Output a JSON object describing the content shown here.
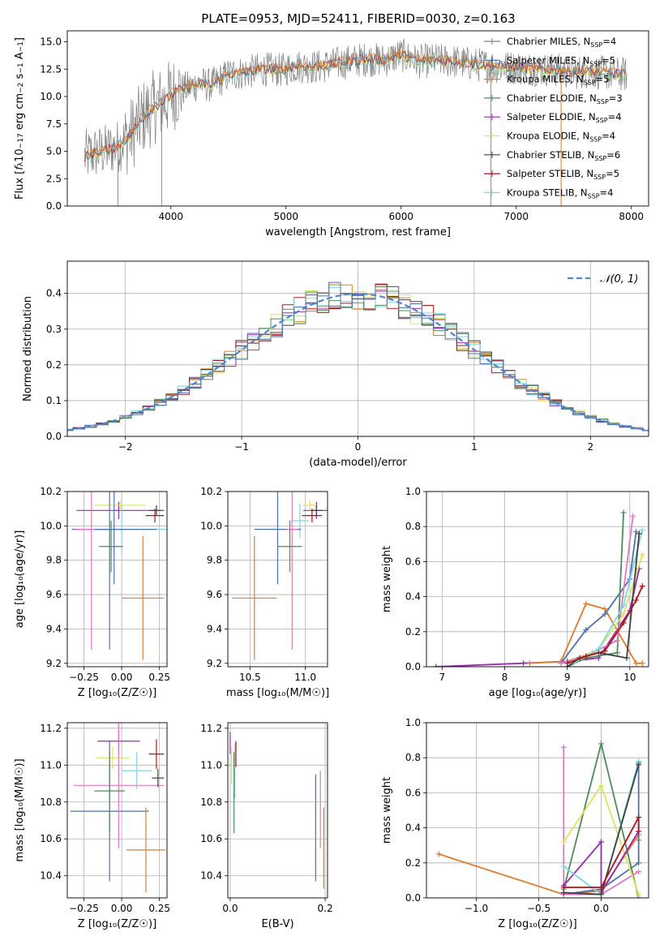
{
  "figure": {
    "title": "PLATE=0953, MJD=52411, FIBERID=0030, z=0.163"
  },
  "colors": {
    "chabrier_miles": "#7f7f7f",
    "salpeter_miles": "#4c72b0",
    "kroupa_miles": "#e07b2a",
    "chabrier_elodie": "#4e8a5c",
    "salpeter_elodie": "#9b27b0",
    "kroupa_elodie": "#d9e45a",
    "chabrier_stelib": "#404040",
    "salpeter_stelib": "#b2121a",
    "kroupa_stelib": "#7fd8e0",
    "pink": "#e377c2",
    "gauss": "#4f86d0"
  },
  "chart_data": [
    {
      "id": "spectrum",
      "type": "line",
      "xlabel": "wavelength [Angstrom, rest frame]",
      "ylabel": "Flux [f_λ10^-17 erg cm^-2 s^-1 A^-1]",
      "xlim": [
        3100,
        8150
      ],
      "ylim": [
        0,
        16
      ],
      "xticks": [
        4000,
        5000,
        6000,
        7000,
        8000
      ],
      "yticks": [
        0.0,
        2.5,
        5.0,
        7.5,
        10.0,
        12.5,
        15.0
      ],
      "ytick_labels": [
        "0.0",
        "2.5",
        "5.0",
        "7.5",
        "10.0",
        "12.5",
        "15.0"
      ],
      "grid": false,
      "legend_position": "right",
      "legend": [
        {
          "sub": "Chabrier MILES, N",
          "idx": "SSP",
          "post": "=4",
          "color_key": "chabrier_miles"
        },
        {
          "sub": "Salpeter MILES, N",
          "idx": "SSP",
          "post": "=5",
          "color_key": "salpeter_miles"
        },
        {
          "sub": "Kroupa MILES, N",
          "idx": "SSP",
          "post": "=5",
          "color_key": "kroupa_miles"
        },
        {
          "sub": "Chabrier ELODIE, N",
          "idx": "SSP",
          "post": "=3",
          "color_key": "chabrier_elodie"
        },
        {
          "sub": "Salpeter ELODIE, N",
          "idx": "SSP",
          "post": "=4",
          "color_key": "salpeter_elodie"
        },
        {
          "sub": "Kroupa ELODIE, N",
          "idx": "SSP",
          "post": "=4",
          "color_key": "kroupa_elodie"
        },
        {
          "sub": "Chabrier STELIB, N",
          "idx": "SSP",
          "post": "=6",
          "color_key": "chabrier_stelib"
        },
        {
          "sub": "Salpeter STELIB, N",
          "idx": "SSP",
          "post": "=5",
          "color_key": "salpeter_stelib"
        },
        {
          "sub": "Kroupa STELIB, N",
          "idx": "SSP",
          "post": "=4",
          "color_key": "kroupa_stelib"
        }
      ],
      "x": [
        3250,
        3350,
        3450,
        3550,
        3650,
        3750,
        3850,
        3950,
        4050,
        4150,
        4250,
        4350,
        4500,
        4650,
        4800,
        4950,
        5100,
        5250,
        5400,
        5550,
        5700,
        5850,
        6000,
        6150,
        6300,
        6450,
        6600,
        6750,
        6900,
        7050,
        7200,
        7350,
        7500,
        7650,
        7800,
        7950
      ],
      "y": [
        4.5,
        4.9,
        5.1,
        5.5,
        6.5,
        8.0,
        9.0,
        9.6,
        10.5,
        10.8,
        11.2,
        11.0,
        12.0,
        12.2,
        12.5,
        12.4,
        12.8,
        12.7,
        12.9,
        13.2,
        13.4,
        13.3,
        13.8,
        13.2,
        13.3,
        13.2,
        13.0,
        12.8,
        12.7,
        12.6,
        12.5,
        12.4,
        12.2,
        12.3,
        12.1,
        12.0
      ]
    },
    {
      "id": "residuals",
      "type": "bar",
      "xlabel": "(data-model)/error",
      "ylabel": "Normed distribution",
      "xlim": [
        -2.5,
        2.5
      ],
      "ylim": [
        0,
        0.49
      ],
      "xticks": [
        -2,
        -1,
        0,
        1,
        2
      ],
      "xtick_labels": [
        "−2",
        "−1",
        "0",
        "1",
        "2"
      ],
      "yticks": [
        0.0,
        0.1,
        0.2,
        0.3,
        0.4
      ],
      "ytick_labels": [
        "0.0",
        "0.1",
        "0.2",
        "0.3",
        "0.4"
      ],
      "grid": true,
      "legend_position": "top-right",
      "legend_label": "𝒩(0, 1)",
      "bin_width": 0.1
    },
    {
      "id": "age-vs-z",
      "type": "scatter",
      "xlabel": "Z [log₁₀(Z/Z☉)]",
      "ylabel": "age  [log₁₀(age/yr)]",
      "xlim": [
        -0.36,
        0.3
      ],
      "ylim": [
        9.18,
        10.2
      ],
      "xticks": [
        -0.25,
        0.0,
        0.25
      ],
      "xtick_labels": [
        "−0.25",
        "0.00",
        "0.25"
      ],
      "yticks": [
        9.2,
        9.4,
        9.6,
        9.8,
        10.0,
        10.2
      ],
      "ytick_labels": [
        "9.2",
        "9.4",
        "9.6",
        "9.8",
        "10.0",
        "10.2"
      ],
      "grid": true,
      "points": [
        {
          "x": -0.02,
          "xerr": 0.28,
          "y": 10.09,
          "yerr": 0.05,
          "color_key": "salpeter_elodie"
        },
        {
          "x": -0.01,
          "xerr": 0.17,
          "y": 10.12,
          "yerr": 0.03,
          "color_key": "kroupa_elodie"
        },
        {
          "x": 0.0,
          "xerr": 0.3,
          "y": 9.98,
          "yerr": 0.14,
          "color_key": "kroupa_stelib"
        },
        {
          "x": -0.05,
          "xerr": 0.28,
          "y": 9.98,
          "yerr": 0.32,
          "color_key": "salpeter_miles"
        },
        {
          "x": -0.2,
          "xerr": 0.1,
          "y": 9.98,
          "yerr": 0.7,
          "color_key": "pink"
        },
        {
          "x": -0.08,
          "xerr": 0.1,
          "y": 9.98,
          "yerr": 0.7,
          "color_key": "salpeter_miles"
        },
        {
          "x": -0.07,
          "xerr": 0.08,
          "y": 9.88,
          "yerr": 0.15,
          "color_key": "chabrier_elodie"
        },
        {
          "x": 0.22,
          "xerr": 0.06,
          "y": 10.06,
          "yerr": 0.04,
          "color_key": "salpeter_stelib"
        },
        {
          "x": 0.23,
          "xerr": 0.05,
          "y": 10.09,
          "yerr": 0.03,
          "color_key": "chabrier_stelib"
        },
        {
          "x": 0.14,
          "xerr": 0.14,
          "y": 9.58,
          "yerr": 0.36,
          "color_key": "kroupa_miles"
        }
      ]
    },
    {
      "id": "age-vs-mass",
      "type": "scatter",
      "xlabel": "mass [log₁₀(M/M☉)]",
      "ylabel": "",
      "xlim": [
        10.3,
        11.2
      ],
      "ylim": [
        9.18,
        10.2
      ],
      "xticks": [
        10.5,
        11.0
      ],
      "xtick_labels": [
        "10.5",
        "11.0"
      ],
      "yticks": [
        9.2,
        9.4,
        9.6,
        9.8,
        10.0,
        10.2
      ],
      "ytick_labels": [
        "9.2",
        "9.4",
        "9.6",
        "9.8",
        "10.0",
        "10.2"
      ],
      "grid": true,
      "points": [
        {
          "x": 11.1,
          "xerr": 0.12,
          "y": 10.09,
          "yerr": 0.05,
          "color_key": "salpeter_elodie"
        },
        {
          "x": 11.04,
          "xerr": 0.06,
          "y": 10.12,
          "yerr": 0.03,
          "color_key": "kroupa_elodie"
        },
        {
          "x": 10.95,
          "xerr": 0.08,
          "y": 10.03,
          "yerr": 0.1,
          "color_key": "kroupa_stelib"
        },
        {
          "x": 10.75,
          "xerr": 0.21,
          "y": 9.98,
          "yerr": 0.32,
          "color_key": "salpeter_miles"
        },
        {
          "x": 10.88,
          "xerr": 0.05,
          "y": 9.98,
          "yerr": 0.7,
          "color_key": "pink"
        },
        {
          "x": 10.86,
          "xerr": 0.11,
          "y": 9.88,
          "yerr": 0.15,
          "color_key": "chabrier_elodie"
        },
        {
          "x": 11.06,
          "xerr": 0.09,
          "y": 10.06,
          "yerr": 0.04,
          "color_key": "salpeter_stelib"
        },
        {
          "x": 11.1,
          "xerr": 0.05,
          "y": 10.09,
          "yerr": 0.03,
          "color_key": "chabrier_stelib"
        },
        {
          "x": 10.54,
          "xerr": 0.2,
          "y": 9.58,
          "yerr": 0.36,
          "color_key": "kroupa_miles"
        }
      ]
    },
    {
      "id": "weight-vs-age",
      "type": "line",
      "xlabel": "age  [log₁₀(age/yr)]",
      "ylabel": "mass weight",
      "xlim": [
        6.75,
        10.3
      ],
      "ylim": [
        0,
        1
      ],
      "xticks": [
        7,
        8,
        9,
        10
      ],
      "xtick_labels": [
        "7",
        "8",
        "9",
        "10"
      ],
      "yticks": [
        0.0,
        0.2,
        0.4,
        0.6,
        0.8,
        1.0
      ],
      "ytick_labels": [
        "0.0",
        "0.2",
        "0.4",
        "0.6",
        "0.8",
        "1.0"
      ],
      "grid": true,
      "series": [
        {
          "color_key": "salpeter_elodie",
          "x": [
            6.9,
            8.3,
            9.0,
            9.5,
            10.0,
            10.15
          ],
          "y": [
            0.0,
            0.02,
            0.03,
            0.05,
            0.32,
            0.56
          ]
        },
        {
          "color_key": "kroupa_miles",
          "x": [
            8.4,
            8.9,
            9.3,
            9.6,
            10.1,
            10.2
          ],
          "y": [
            0.02,
            0.03,
            0.36,
            0.33,
            0.02,
            0.02
          ]
        },
        {
          "color_key": "salpeter_miles",
          "x": [
            8.9,
            9.3,
            9.6,
            10.0,
            10.1
          ],
          "y": [
            0.02,
            0.21,
            0.3,
            0.5,
            0.77
          ]
        },
        {
          "color_key": "chabrier_elodie",
          "x": [
            9.0,
            9.3,
            9.8,
            9.9
          ],
          "y": [
            0.0,
            0.05,
            0.08,
            0.88
          ]
        },
        {
          "color_key": "pink",
          "x": [
            8.9,
            9.4,
            9.8,
            10.05
          ],
          "y": [
            0.02,
            0.08,
            0.15,
            0.86
          ]
        },
        {
          "color_key": "kroupa_elodie",
          "x": [
            9.0,
            9.5,
            9.9,
            10.2
          ],
          "y": [
            0.02,
            0.1,
            0.3,
            0.64
          ]
        },
        {
          "color_key": "kroupa_stelib",
          "x": [
            9.1,
            9.5,
            9.9,
            10.2
          ],
          "y": [
            0.02,
            0.1,
            0.35,
            0.78
          ]
        },
        {
          "color_key": "chabrier_stelib",
          "x": [
            9.0,
            9.2,
            9.5,
            9.95,
            10.15
          ],
          "y": [
            0.0,
            0.05,
            0.08,
            0.05,
            0.76
          ]
        },
        {
          "color_key": "salpeter_stelib",
          "x": [
            9.0,
            9.3,
            9.6,
            9.9,
            10.1,
            10.2
          ],
          "y": [
            0.02,
            0.06,
            0.09,
            0.25,
            0.38,
            0.46
          ]
        }
      ]
    },
    {
      "id": "mass-vs-z",
      "type": "scatter",
      "xlabel": "Z [log₁₀(Z/Z☉)]",
      "ylabel": "mass [log₁₀(M/M☉)]",
      "xlim": [
        -0.36,
        0.3
      ],
      "ylim": [
        10.28,
        11.23
      ],
      "xticks": [
        -0.25,
        0.0,
        0.25
      ],
      "xtick_labels": [
        "−0.25",
        "0.00",
        "0.25"
      ],
      "yticks": [
        10.4,
        10.6,
        10.8,
        11.0,
        11.2
      ],
      "ytick_labels": [
        "10.4",
        "10.6",
        "10.8",
        "11.0",
        "11.2"
      ],
      "grid": true,
      "points": [
        {
          "x": -0.02,
          "xerr": 0.14,
          "y": 11.13,
          "yerr": 0.06,
          "color_key": "salpeter_elodie"
        },
        {
          "x": -0.06,
          "xerr": 0.11,
          "y": 11.04,
          "yerr": 0.06,
          "color_key": "kroupa_elodie"
        },
        {
          "x": 0.1,
          "xerr": 0.1,
          "y": 10.97,
          "yerr": 0.1,
          "color_key": "kroupa_stelib"
        },
        {
          "x": -0.08,
          "xerr": 0.26,
          "y": 10.75,
          "yerr": 0.38,
          "color_key": "salpeter_miles"
        },
        {
          "x": -0.02,
          "xerr": 0.3,
          "y": 10.89,
          "yerr": 0.34,
          "color_key": "pink"
        },
        {
          "x": -0.08,
          "xerr": 0.1,
          "y": 10.86,
          "yerr": 0.22,
          "color_key": "chabrier_elodie"
        },
        {
          "x": 0.23,
          "xerr": 0.05,
          "y": 11.06,
          "yerr": 0.08,
          "color_key": "salpeter_stelib"
        },
        {
          "x": 0.24,
          "xerr": 0.04,
          "y": 10.93,
          "yerr": 0.05,
          "color_key": "chabrier_stelib"
        },
        {
          "x": 0.16,
          "xerr": 0.13,
          "y": 10.54,
          "yerr": 0.23,
          "color_key": "kroupa_miles"
        }
      ]
    },
    {
      "id": "mass-vs-ebv",
      "type": "scatter",
      "xlabel": "E(B-V)",
      "ylabel": "",
      "xlim": [
        -0.005,
        0.205
      ],
      "ylim": [
        10.28,
        11.23
      ],
      "xticks": [
        0.0,
        0.2
      ],
      "xtick_labels": [
        "0.0",
        "0.2"
      ],
      "yticks": [
        10.4,
        10.6,
        10.8,
        11.0,
        11.2
      ],
      "ytick_labels": [
        "10.4",
        "10.6",
        "10.8",
        "11.0",
        "11.2"
      ],
      "grid": true,
      "points": [
        {
          "x": 0.0,
          "xerr": 0.0,
          "y": 11.12,
          "yerr": 0.06,
          "color_key": "salpeter_elodie"
        },
        {
          "x": 0.003,
          "xerr": 0.0,
          "y": 11.0,
          "yerr": 0.1,
          "color_key": "kroupa_elodie"
        },
        {
          "x": 0.01,
          "xerr": 0.0,
          "y": 10.97,
          "yerr": 0.15,
          "color_key": "kroupa_stelib"
        },
        {
          "x": 0.012,
          "xerr": 0.0,
          "y": 11.06,
          "yerr": 0.07,
          "color_key": "salpeter_stelib"
        },
        {
          "x": 0.008,
          "xerr": 0.0,
          "y": 10.85,
          "yerr": 0.22,
          "color_key": "chabrier_elodie"
        },
        {
          "x": 0.18,
          "xerr": 0.0,
          "y": 10.66,
          "yerr": 0.29,
          "color_key": "salpeter_miles"
        },
        {
          "x": 0.19,
          "xerr": 0.0,
          "y": 10.76,
          "yerr": 0.21,
          "color_key": "pink"
        },
        {
          "x": 0.197,
          "xerr": 0.0,
          "y": 10.55,
          "yerr": 0.22,
          "color_key": "kroupa_miles"
        }
      ]
    },
    {
      "id": "weight-vs-z",
      "type": "line",
      "xlabel": "Z [log₁₀(Z/Z☉)]",
      "ylabel": "mass weight",
      "xlim": [
        -1.4,
        0.38
      ],
      "ylim": [
        0,
        1
      ],
      "xticks": [
        -1.0,
        -0.5,
        0.0
      ],
      "xtick_labels": [
        "−1.0",
        "−0.5",
        "0.0"
      ],
      "yticks": [
        0.0,
        0.2,
        0.4,
        0.6,
        0.8,
        1.0
      ],
      "ytick_labels": [
        "0.0",
        "0.2",
        "0.4",
        "0.6",
        "0.8",
        "1.0"
      ],
      "grid": true,
      "series": [
        {
          "color_key": "kroupa_miles",
          "x": [
            -1.3,
            -0.3,
            0.0,
            0.3,
            0.3
          ],
          "y": [
            0.25,
            0.02,
            0.04,
            0.36,
            0.33
          ]
        },
        {
          "color_key": "salpeter_miles",
          "x": [
            -0.3,
            0.0,
            0.3,
            0.3
          ],
          "y": [
            0.02,
            0.05,
            0.2,
            0.77
          ]
        },
        {
          "color_key": "chabrier_elodie",
          "x": [
            -0.3,
            0.0,
            0.3
          ],
          "y": [
            0.05,
            0.88,
            0.0
          ]
        },
        {
          "color_key": "pink",
          "x": [
            -0.3,
            -0.3,
            0.0,
            0.3
          ],
          "y": [
            0.86,
            0.02,
            0.02,
            0.15
          ]
        },
        {
          "color_key": "kroupa_elodie",
          "x": [
            -0.3,
            0.0,
            0.3
          ],
          "y": [
            0.32,
            0.64,
            0.02
          ]
        },
        {
          "color_key": "salpeter_elodie",
          "x": [
            -0.3,
            0.0,
            0.0,
            0.3
          ],
          "y": [
            0.07,
            0.32,
            0.03,
            0.38
          ]
        },
        {
          "color_key": "kroupa_stelib",
          "x": [
            -0.3,
            0.0,
            0.3
          ],
          "y": [
            0.18,
            0.02,
            0.78
          ]
        },
        {
          "color_key": "chabrier_stelib",
          "x": [
            -0.3,
            0.0,
            0.3
          ],
          "y": [
            0.03,
            0.02,
            0.76
          ]
        },
        {
          "color_key": "salpeter_stelib",
          "x": [
            -0.3,
            0.0,
            0.3,
            0.3
          ],
          "y": [
            0.06,
            0.06,
            0.46,
            0.38
          ]
        }
      ]
    }
  ]
}
